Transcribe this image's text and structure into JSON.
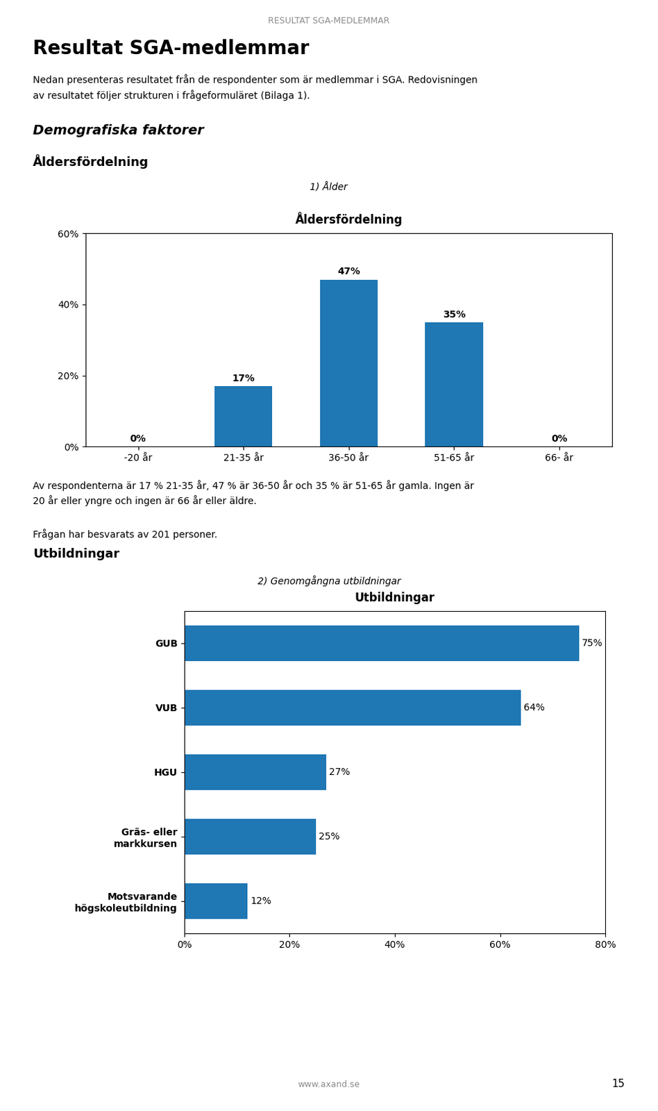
{
  "page_header": "RESULTAT SGA-MEDLEMMAR",
  "title": "Resultat SGA-medlemmar",
  "intro": "Nedan presenteras resultatet från de respondenter som är medlemmar i SGA. Redovisningen\nav resultatet följer strukturen i frågeformuläret (Bilaga 1).",
  "section_title": "Demografiska faktorer",
  "footer": "www.axand.se",
  "page_number": "15",
  "chart_data": [
    {
      "type": "bar",
      "heading": "Åldersfördelning",
      "label": "1) Ålder",
      "title": "Åldersfördelning",
      "categories": [
        "-20 år",
        "21-35 år",
        "36-50 år",
        "51-65 år",
        "66- år"
      ],
      "values": [
        0,
        17,
        47,
        35,
        0
      ],
      "value_labels": [
        "0%",
        "17%",
        "47%",
        "35%",
        "0%"
      ],
      "data_labels": true,
      "ylim": [
        0,
        60
      ],
      "yticks": [
        {
          "value": 0,
          "label": "0%"
        },
        {
          "value": 20,
          "label": "20%"
        },
        {
          "value": 40,
          "label": "40%"
        },
        {
          "value": 60,
          "label": "60%"
        }
      ],
      "grid": false,
      "notes": [
        "Av respondenterna är 17 % 21-35 år, 47 % är 36-50 år och 35 % är 51-65 år gamla. Ingen är\n20 år eller yngre och ingen är 66 år eller äldre.",
        "Frågan har besvarats av 201 personer."
      ]
    },
    {
      "type": "bar",
      "orientation": "horizontal",
      "heading": "Utbildningar",
      "label": "2) Genomgångna utbildningar",
      "title": "Utbildningar",
      "categories": [
        "GUB",
        "VUB",
        "HGU",
        "Gräs- eller\nmarkkursen",
        "Motsvarande\nhögskoleutbildning"
      ],
      "values": [
        75,
        64,
        27,
        25,
        12
      ],
      "value_labels": [
        "75%",
        "64%",
        "27%",
        "25%",
        "12%"
      ],
      "data_labels": true,
      "xlim": [
        0,
        80
      ],
      "xticks": [
        {
          "value": 0,
          "label": "0%"
        },
        {
          "value": 20,
          "label": "20%"
        },
        {
          "value": 40,
          "label": "40%"
        },
        {
          "value": 60,
          "label": "60%"
        },
        {
          "value": 80,
          "label": "80%"
        }
      ],
      "grid": false
    }
  ]
}
